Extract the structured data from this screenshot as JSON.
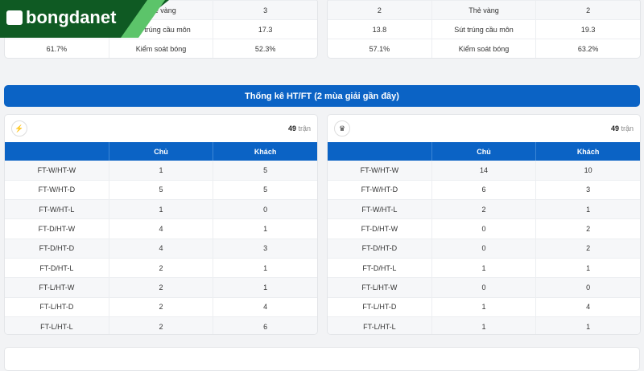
{
  "top_stats": {
    "left": [
      {
        "home": "",
        "label": "Thẻ vàng",
        "away": "3"
      },
      {
        "home": "",
        "label": "Sút trúng cầu môn",
        "away": "17.3"
      },
      {
        "home": "61.7%",
        "label": "Kiểm soát bóng",
        "away": "52.3%"
      }
    ],
    "right": [
      {
        "home": "2",
        "label": "Thẻ vàng",
        "away": "2"
      },
      {
        "home": "13.8",
        "label": "Sút trúng cầu môn",
        "away": "19.3"
      },
      {
        "home": "57.1%",
        "label": "Kiểm soát bóng",
        "away": "63.2%"
      }
    ]
  },
  "logo": {
    "text": "bongdanet",
    "color": "#0f5a23"
  },
  "banner": {
    "title": "Thống kê HT/FT (2 mùa giải gần đây)",
    "color": "#0b63c5"
  },
  "columns": {
    "home": "Chủ",
    "away": "Khách"
  },
  "teams": [
    {
      "crest": "rayo-vallecano-crest",
      "matches": "49",
      "matches_label": "trận",
      "rows": [
        [
          "FT-W/HT-W",
          "1",
          "5"
        ],
        [
          "FT-W/HT-D",
          "5",
          "5"
        ],
        [
          "FT-W/HT-L",
          "1",
          "0"
        ],
        [
          "FT-D/HT-W",
          "4",
          "1"
        ],
        [
          "FT-D/HT-D",
          "4",
          "3"
        ],
        [
          "FT-D/HT-L",
          "2",
          "1"
        ],
        [
          "FT-L/HT-W",
          "2",
          "1"
        ],
        [
          "FT-L/HT-D",
          "2",
          "4"
        ],
        [
          "FT-L/HT-L",
          "2",
          "6"
        ]
      ]
    },
    {
      "crest": "real-madrid-crest",
      "matches": "49",
      "matches_label": "trận",
      "rows": [
        [
          "FT-W/HT-W",
          "14",
          "10"
        ],
        [
          "FT-W/HT-D",
          "6",
          "3"
        ],
        [
          "FT-W/HT-L",
          "2",
          "1"
        ],
        [
          "FT-D/HT-W",
          "0",
          "2"
        ],
        [
          "FT-D/HT-D",
          "0",
          "2"
        ],
        [
          "FT-D/HT-L",
          "1",
          "1"
        ],
        [
          "FT-L/HT-W",
          "0",
          "0"
        ],
        [
          "FT-L/HT-D",
          "1",
          "4"
        ],
        [
          "FT-L/HT-L",
          "1",
          "1"
        ]
      ]
    }
  ]
}
